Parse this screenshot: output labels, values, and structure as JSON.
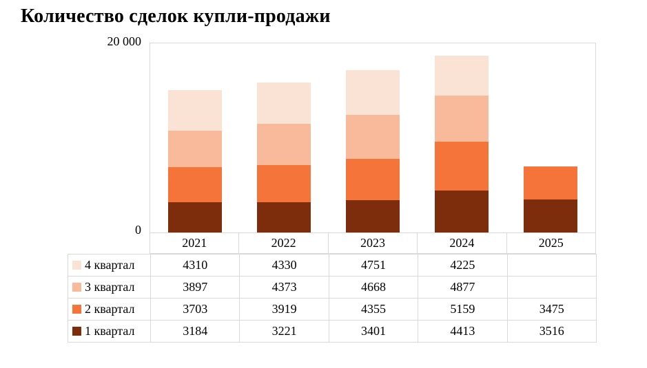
{
  "title": "Количество сделок купли-продажи",
  "y_axis": {
    "top_label": "20 000",
    "bottom_label": "0"
  },
  "chart_data": {
    "type": "bar",
    "stacked": true,
    "title": "Количество сделок купли-продажи",
    "categories": [
      "2021",
      "2022",
      "2023",
      "2024",
      "2025"
    ],
    "series": [
      {
        "name": "1 квартал",
        "color": "#7E2D0C",
        "values": [
          3184,
          3221,
          3401,
          4413,
          3516
        ]
      },
      {
        "name": "2 квартал",
        "color": "#F47439",
        "values": [
          3703,
          3919,
          4355,
          5159,
          3475
        ]
      },
      {
        "name": "3 квартал",
        "color": "#F9BA9B",
        "values": [
          3897,
          4373,
          4668,
          4877,
          null
        ]
      },
      {
        "name": "4 квартал",
        "color": "#FAE3D5",
        "values": [
          4310,
          4330,
          4751,
          4225,
          null
        ]
      }
    ],
    "ylim": [
      0,
      20000
    ],
    "y_ticks": [
      "0",
      "20 000"
    ],
    "grid": false,
    "legend_position": "data-table-left"
  }
}
